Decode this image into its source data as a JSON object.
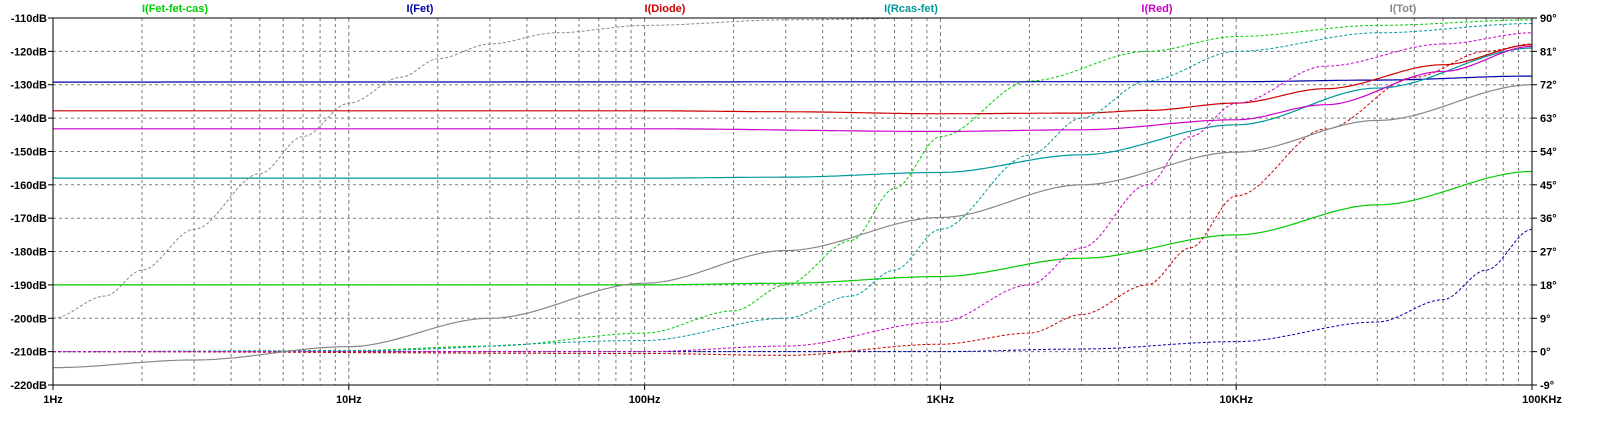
{
  "chart_data": {
    "type": "line",
    "title": "",
    "xlabel": "",
    "ylabel": "",
    "x_scale": "log",
    "x_range_hz": [
      1,
      100000
    ],
    "x_tick_labels": [
      {
        "value": 1,
        "label": "1Hz"
      },
      {
        "value": 10,
        "label": "10Hz"
      },
      {
        "value": 100,
        "label": "100Hz"
      },
      {
        "value": 1000,
        "label": "1KHz"
      },
      {
        "value": 10000,
        "label": "10KHz"
      },
      {
        "value": 100000,
        "label": "100KHz"
      }
    ],
    "y_left_range_db": [
      -220,
      -110
    ],
    "y_left_tick_labels": [
      {
        "value": -110,
        "label": "-110dB"
      },
      {
        "value": -120,
        "label": "-120dB"
      },
      {
        "value": -130,
        "label": "-130dB"
      },
      {
        "value": -140,
        "label": "-140dB"
      },
      {
        "value": -150,
        "label": "-150dB"
      },
      {
        "value": -160,
        "label": "-160dB"
      },
      {
        "value": -170,
        "label": "-170dB"
      },
      {
        "value": -180,
        "label": "-180dB"
      },
      {
        "value": -190,
        "label": "-190dB"
      },
      {
        "value": -200,
        "label": "-200dB"
      },
      {
        "value": -210,
        "label": "-210dB"
      },
      {
        "value": -220,
        "label": "-220dB"
      }
    ],
    "y_right_range_deg": [
      -9,
      90
    ],
    "y_right_tick_labels": [
      {
        "value": 90,
        "label": "90°"
      },
      {
        "value": 81,
        "label": "81°"
      },
      {
        "value": 72,
        "label": "72°"
      },
      {
        "value": 63,
        "label": "63°"
      },
      {
        "value": 54,
        "label": "54°"
      },
      {
        "value": 45,
        "label": "45°"
      },
      {
        "value": 36,
        "label": "36°"
      },
      {
        "value": 27,
        "label": "27°"
      },
      {
        "value": 18,
        "label": "18°"
      },
      {
        "value": 9,
        "label": "9°"
      },
      {
        "value": 0,
        "label": "0°"
      },
      {
        "value": -9,
        "label": "-9°"
      }
    ],
    "grid": true,
    "legend_position": "top",
    "series": [
      {
        "name": "I(Fet-fet-cas)",
        "color": "#00cc00",
        "magnitude_db": [
          [
            1,
            -190
          ],
          [
            100,
            -190
          ],
          [
            300,
            -189.5
          ],
          [
            1000,
            -187.5
          ],
          [
            3000,
            -182
          ],
          [
            10000,
            -175
          ],
          [
            30000,
            -166
          ],
          [
            100000,
            -156
          ]
        ],
        "phase_deg": [
          [
            1,
            0
          ],
          [
            10,
            0.3
          ],
          [
            30,
            1.5
          ],
          [
            100,
            5
          ],
          [
            200,
            11
          ],
          [
            300,
            18
          ],
          [
            500,
            30
          ],
          [
            700,
            44
          ],
          [
            1000,
            58
          ],
          [
            2000,
            73
          ],
          [
            5000,
            81
          ],
          [
            10000,
            85
          ],
          [
            30000,
            88
          ],
          [
            100000,
            89.5
          ]
        ]
      },
      {
        "name": "I(Fet)",
        "color": "#0000aa",
        "magnitude_db": [
          [
            1,
            -129.2
          ],
          [
            10000,
            -129.1
          ],
          [
            30000,
            -128.6
          ],
          [
            100000,
            -127.4
          ]
        ],
        "phase_deg": [
          [
            1,
            0
          ],
          [
            1000,
            0
          ],
          [
            3000,
            0.7
          ],
          [
            10000,
            2.7
          ],
          [
            30000,
            8
          ],
          [
            50000,
            14
          ],
          [
            70000,
            22
          ],
          [
            100000,
            33
          ]
        ]
      },
      {
        "name": "I(Diode)",
        "color": "#cc0000",
        "magnitude_db": [
          [
            1,
            -137.8
          ],
          [
            100,
            -137.8
          ],
          [
            300,
            -138.1
          ],
          [
            1000,
            -138.7
          ],
          [
            3000,
            -138.5
          ],
          [
            5000,
            -137.7
          ],
          [
            10000,
            -135.5
          ],
          [
            20000,
            -131.2
          ],
          [
            50000,
            -124
          ],
          [
            100000,
            -118
          ]
        ],
        "phase_deg": [
          [
            1,
            0
          ],
          [
            100,
            -0.5
          ],
          [
            300,
            -1
          ],
          [
            1000,
            2
          ],
          [
            2000,
            5
          ],
          [
            3000,
            10
          ],
          [
            5000,
            18
          ],
          [
            7000,
            28
          ],
          [
            10000,
            42
          ],
          [
            20000,
            60
          ],
          [
            40000,
            74
          ],
          [
            70000,
            81
          ],
          [
            100000,
            83
          ]
        ]
      },
      {
        "name": "I(Rcas-fet)",
        "color": "#009999",
        "magnitude_db": [
          [
            1,
            -158
          ],
          [
            100,
            -158
          ],
          [
            300,
            -157.7
          ],
          [
            1000,
            -156.3
          ],
          [
            3000,
            -151
          ],
          [
            10000,
            -142
          ],
          [
            30000,
            -131
          ],
          [
            100000,
            -119
          ]
        ],
        "phase_deg": [
          [
            1,
            0
          ],
          [
            10,
            0.2
          ],
          [
            100,
            3
          ],
          [
            300,
            9
          ],
          [
            500,
            15
          ],
          [
            700,
            22
          ],
          [
            1000,
            33
          ],
          [
            2000,
            53
          ],
          [
            3000,
            63
          ],
          [
            5000,
            73
          ],
          [
            10000,
            81
          ],
          [
            30000,
            86
          ],
          [
            100000,
            88.5
          ]
        ]
      },
      {
        "name": "I(Red)",
        "color": "#cc00cc",
        "magnitude_db": [
          [
            1,
            -143.2
          ],
          [
            100,
            -143.2
          ],
          [
            1000,
            -144
          ],
          [
            3000,
            -143.5
          ],
          [
            10000,
            -140.5
          ],
          [
            20000,
            -136
          ],
          [
            50000,
            -126
          ],
          [
            100000,
            -118.5
          ]
        ],
        "phase_deg": [
          [
            1,
            0
          ],
          [
            100,
            0
          ],
          [
            300,
            1.5
          ],
          [
            1000,
            8
          ],
          [
            2000,
            18
          ],
          [
            3000,
            28
          ],
          [
            5000,
            45
          ],
          [
            7000,
            58
          ],
          [
            10000,
            67
          ],
          [
            20000,
            77
          ],
          [
            50000,
            83
          ],
          [
            100000,
            86
          ]
        ]
      },
      {
        "name": "I(Tot)",
        "color": "#888888",
        "magnitude_db": [
          [
            1,
            -214.8
          ],
          [
            3,
            -212.5
          ],
          [
            10,
            -208.5
          ],
          [
            30,
            -200
          ],
          [
            100,
            -189.5
          ],
          [
            300,
            -179.7
          ],
          [
            1000,
            -169.8
          ],
          [
            3000,
            -160
          ],
          [
            10000,
            -150.2
          ],
          [
            30000,
            -140.7
          ],
          [
            100000,
            -130
          ]
        ],
        "phase_deg": [
          [
            1,
            9
          ],
          [
            1.5,
            15
          ],
          [
            2,
            22
          ],
          [
            3,
            33
          ],
          [
            5,
            48
          ],
          [
            7,
            58
          ],
          [
            10,
            67
          ],
          [
            15,
            74
          ],
          [
            20,
            79
          ],
          [
            30,
            83
          ],
          [
            50,
            86
          ],
          [
            100,
            88
          ],
          [
            300,
            89.5
          ],
          [
            1000,
            90
          ],
          [
            100000,
            90
          ]
        ]
      }
    ]
  }
}
